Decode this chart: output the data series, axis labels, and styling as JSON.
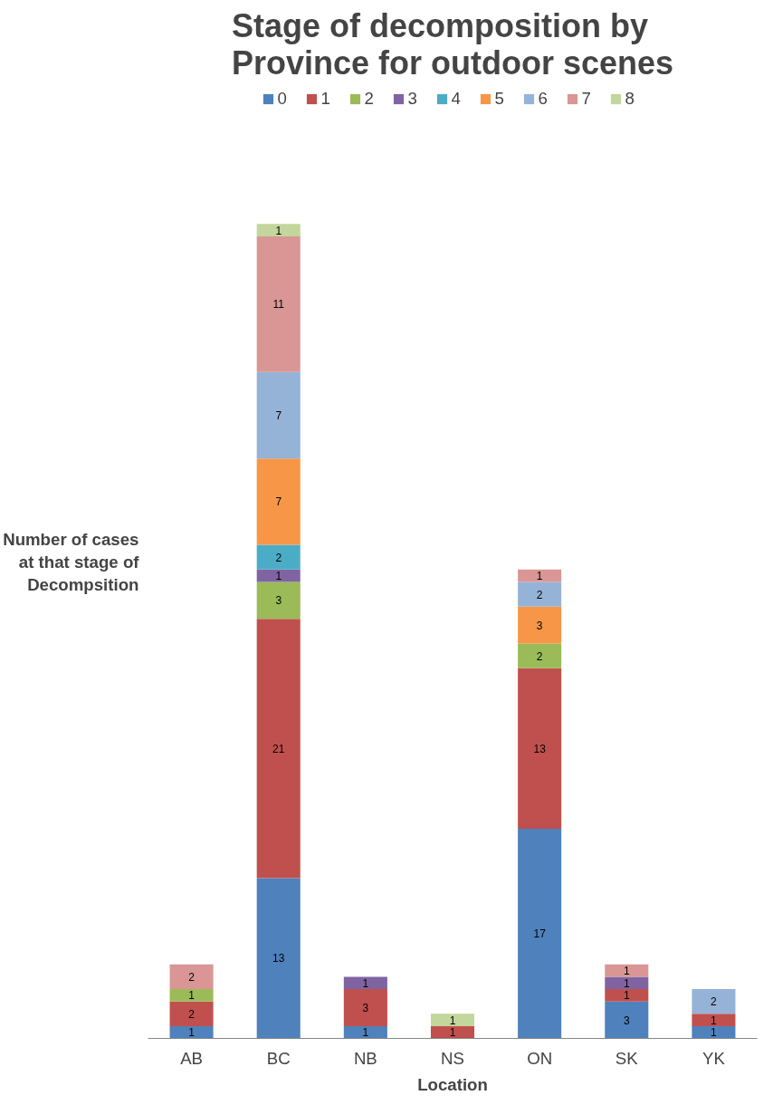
{
  "chart_data": {
    "type": "bar",
    "stacked": true,
    "title": "Stage of decomposition by Province for outdoor scenes",
    "xlabel": "Location",
    "ylabel": "Number of cases at that stage of Decompsition",
    "categories": [
      "AB",
      "BC",
      "NB",
      "NS",
      "ON",
      "SK",
      "YK"
    ],
    "series": [
      {
        "name": "0",
        "color": "#4f81bd",
        "values": [
          1,
          13,
          1,
          null,
          17,
          3,
          1
        ]
      },
      {
        "name": "1",
        "color": "#c0504d",
        "values": [
          2,
          21,
          3,
          1,
          13,
          1,
          1
        ]
      },
      {
        "name": "2",
        "color": "#9bbb59",
        "values": [
          1,
          3,
          null,
          null,
          2,
          null,
          null
        ]
      },
      {
        "name": "3",
        "color": "#8064a2",
        "values": [
          null,
          1,
          1,
          null,
          null,
          1,
          null
        ]
      },
      {
        "name": "4",
        "color": "#4bacc6",
        "values": [
          null,
          2,
          null,
          null,
          null,
          null,
          null
        ]
      },
      {
        "name": "5",
        "color": "#f79646",
        "values": [
          null,
          7,
          null,
          null,
          3,
          null,
          null
        ]
      },
      {
        "name": "6",
        "color": "#95b3d7",
        "values": [
          null,
          7,
          null,
          null,
          2,
          null,
          2
        ]
      },
      {
        "name": "7",
        "color": "#d99694",
        "values": [
          2,
          11,
          null,
          null,
          1,
          1,
          null
        ]
      },
      {
        "name": "8",
        "color": "#c3d69b",
        "values": [
          null,
          1,
          null,
          1,
          null,
          null,
          null
        ]
      }
    ],
    "data_labels": true,
    "legend": "top",
    "grid": false
  }
}
